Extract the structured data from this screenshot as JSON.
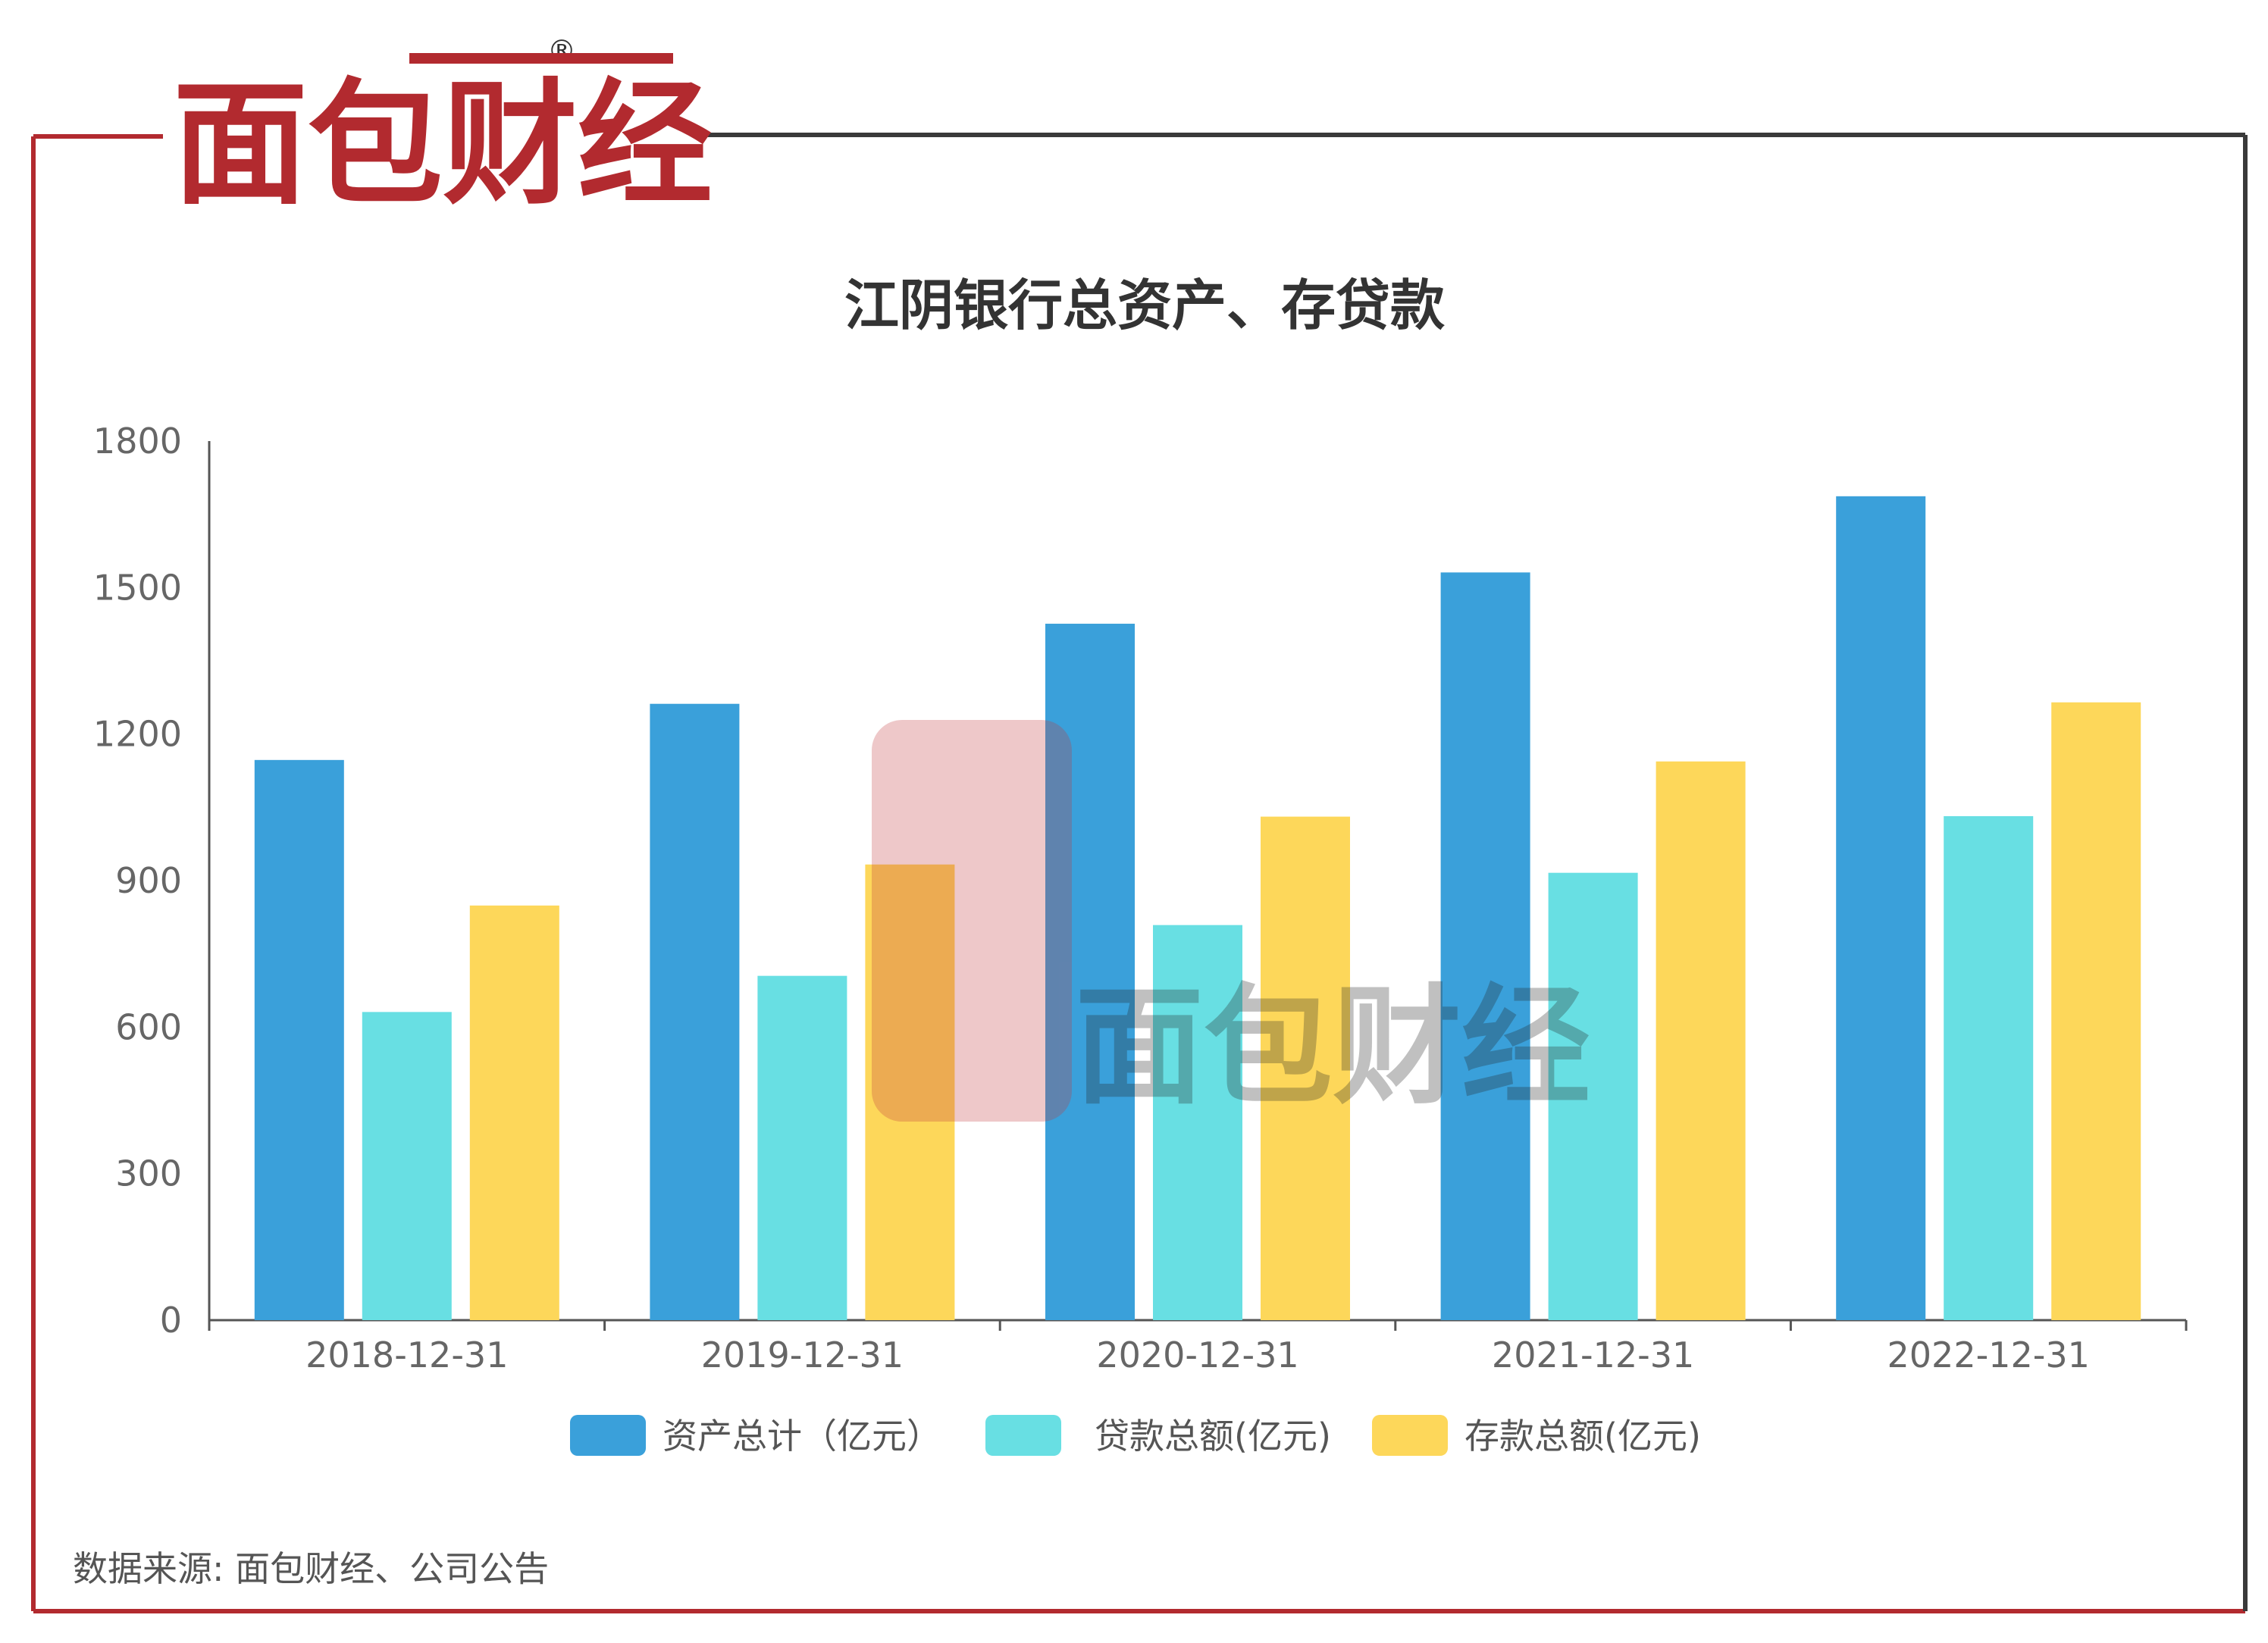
{
  "brand": {
    "logo_text": "面包财经",
    "registered_mark": "®",
    "watermark_text": "面包财经"
  },
  "colors": {
    "brand_red": "#b22a2f",
    "frame_dark": "#3a3a3a",
    "axis": "#555555",
    "tick_text": "#666666",
    "title_text": "#333333"
  },
  "chart_data": {
    "type": "bar",
    "title": "江阴银行总资产、存贷款",
    "categories": [
      "2018-12-31",
      "2019-12-31",
      "2020-12-31",
      "2021-12-31",
      "2022-12-31"
    ],
    "series": [
      {
        "name": "资产总计（亿元）",
        "color": "#3aa0da",
        "values": [
          1147,
          1262,
          1426,
          1531,
          1687
        ]
      },
      {
        "name": "贷款总额(亿元)",
        "color": "#68dfe3",
        "values": [
          631,
          705,
          809,
          916,
          1032
        ]
      },
      {
        "name": "存款总额(亿元)",
        "color": "#fdd75a",
        "values": [
          849,
          933,
          1031,
          1144,
          1265
        ]
      }
    ],
    "y_ticks": [
      "0",
      "300",
      "600",
      "900",
      "1200",
      "1500",
      "1800"
    ],
    "ylim": [
      0,
      1800
    ],
    "grid": false,
    "legend_position": "bottom"
  },
  "footer": {
    "source": "数据来源: 面包财经、公司公告"
  }
}
